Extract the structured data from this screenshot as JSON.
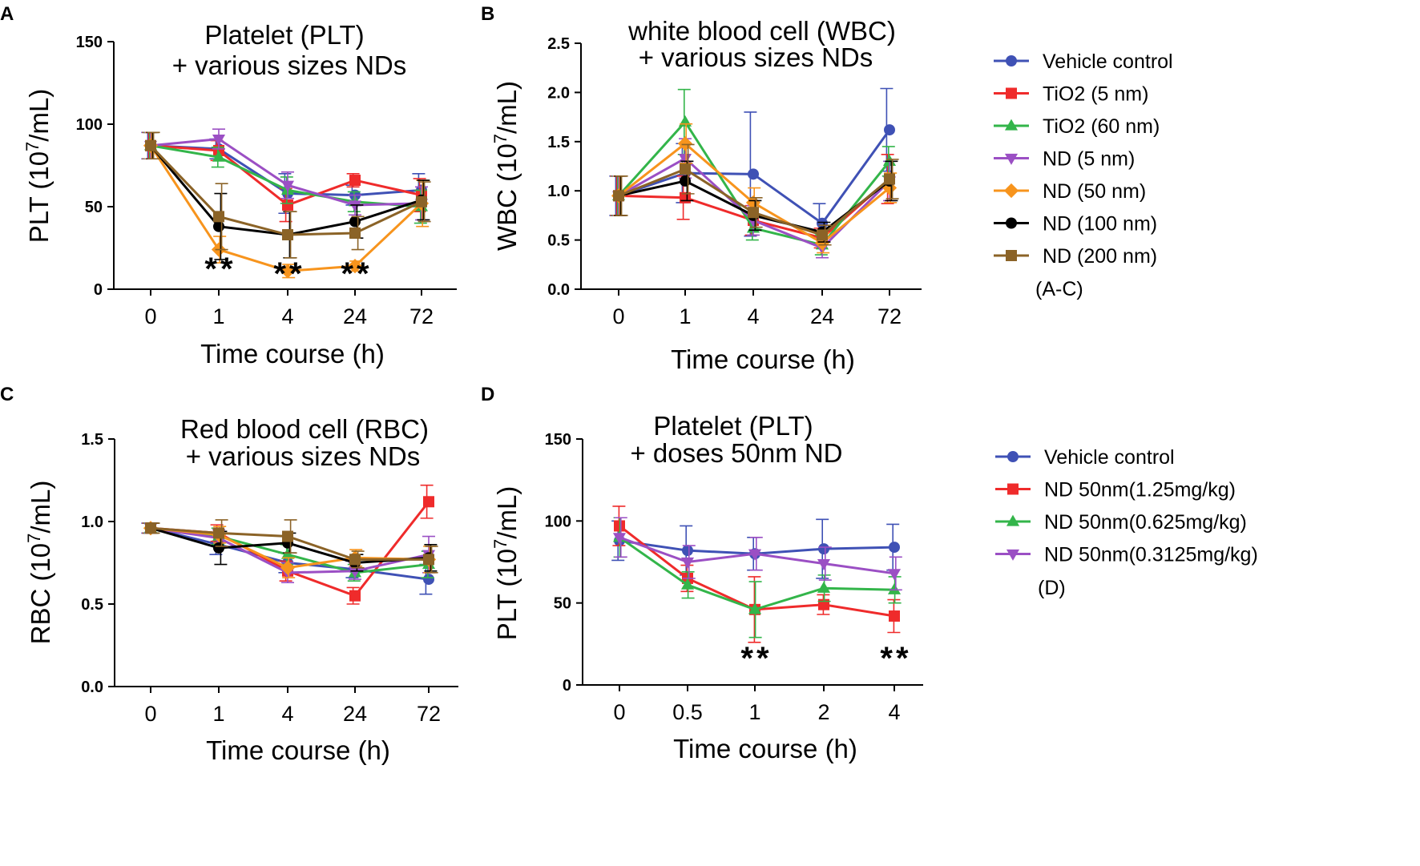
{
  "chart_data": [
    {
      "panel": "A",
      "type": "line",
      "title": [
        "Platelet (PLT)",
        "+ various sizes NDs"
      ],
      "xlabel": "Time course (h)",
      "ylabel": "PLT (10^7/mL)",
      "categories": [
        "0",
        "1",
        "4",
        "24",
        "72"
      ],
      "ylim": [
        0,
        150
      ],
      "yticks": [
        0,
        50,
        100,
        150
      ],
      "series": [
        {
          "name": "Vehicle control",
          "values": [
            87,
            85,
            58,
            57,
            60
          ],
          "errors": [
            8,
            6,
            12,
            6,
            10
          ]
        },
        {
          "name": "TiO2 (5 nm)",
          "values": [
            87,
            84,
            51,
            66,
            57
          ],
          "errors": [
            8,
            6,
            10,
            4,
            10
          ]
        },
        {
          "name": "TiO2 (60 nm)",
          "values": [
            87,
            80,
            60,
            53,
            50
          ],
          "errors": [
            8,
            6,
            8,
            6,
            10
          ]
        },
        {
          "name": "ND (5 nm)",
          "values": [
            87,
            91,
            63,
            51,
            52
          ],
          "errors": [
            8,
            6,
            8,
            6,
            10
          ]
        },
        {
          "name": "ND (50 nm)",
          "values": [
            87,
            24,
            11,
            14,
            52
          ],
          "errors": [
            8,
            8,
            4,
            3,
            14
          ]
        },
        {
          "name": "ND (100 nm)",
          "values": [
            87,
            38,
            33,
            41,
            54
          ],
          "errors": [
            8,
            20,
            14,
            10,
            12
          ]
        },
        {
          "name": "ND (200 nm)",
          "values": [
            87,
            44,
            33,
            34,
            53
          ],
          "errors": [
            8,
            20,
            14,
            10,
            12
          ]
        }
      ],
      "annotations": [
        {
          "category": "1",
          "text": "**"
        },
        {
          "category": "4",
          "text": "**"
        },
        {
          "category": "24",
          "text": "**"
        }
      ]
    },
    {
      "panel": "B",
      "type": "line",
      "title": [
        "white blood cell (WBC)",
        "+ various sizes NDs"
      ],
      "xlabel": "Time course (h)",
      "ylabel": "WBC (10^7/mL)",
      "categories": [
        "0",
        "1",
        "4",
        "24",
        "72"
      ],
      "ylim": [
        0,
        2.5
      ],
      "yticks": [
        "0.0",
        "0.5",
        "1.0",
        "1.5",
        "2.0",
        "2.5"
      ],
      "series": [
        {
          "name": "Vehicle control",
          "values": [
            0.95,
            1.18,
            1.17,
            0.67,
            1.62
          ],
          "errors": [
            0.2,
            0.3,
            0.63,
            0.2,
            0.42
          ]
        },
        {
          "name": "TiO2 (5 nm)",
          "values": [
            0.95,
            0.93,
            0.7,
            0.52,
            1.12
          ],
          "errors": [
            0.2,
            0.22,
            0.15,
            0.1,
            0.25
          ]
        },
        {
          "name": "TiO2 (60 nm)",
          "values": [
            0.95,
            1.7,
            0.62,
            0.45,
            1.3
          ],
          "errors": [
            0.2,
            0.33,
            0.12,
            0.1,
            0.15
          ]
        },
        {
          "name": "ND (5 nm)",
          "values": [
            0.95,
            1.33,
            0.7,
            0.42,
            1.1
          ],
          "errors": [
            0.2,
            0.2,
            0.15,
            0.1,
            0.2
          ]
        },
        {
          "name": "ND (50 nm)",
          "values": [
            0.95,
            1.48,
            0.88,
            0.47,
            1.03
          ],
          "errors": [
            0.2,
            0.2,
            0.15,
            0.1,
            0.15
          ]
        },
        {
          "name": "ND (100 nm)",
          "values": [
            0.95,
            1.1,
            0.75,
            0.58,
            1.1
          ],
          "errors": [
            0.2,
            0.2,
            0.15,
            0.1,
            0.2
          ]
        },
        {
          "name": "ND (200 nm)",
          "values": [
            0.95,
            1.22,
            0.78,
            0.55,
            1.12
          ],
          "errors": [
            0.2,
            0.25,
            0.15,
            0.1,
            0.2
          ]
        }
      ]
    },
    {
      "panel": "C",
      "type": "line",
      "title": [
        "Red blood cell (RBC)",
        "+ various sizes NDs"
      ],
      "xlabel": "Time course (h)",
      "ylabel": "RBC (10^7/mL)",
      "categories": [
        "0",
        "1",
        "4",
        "24",
        "72"
      ],
      "ylim": [
        0,
        1.5
      ],
      "yticks": [
        "0.0",
        "0.5",
        "1.0",
        "1.5"
      ],
      "series": [
        {
          "name": "Vehicle control",
          "values": [
            0.96,
            0.86,
            0.75,
            0.71,
            0.65
          ],
          "errors": [
            0.03,
            0.06,
            0.06,
            0.05,
            0.09
          ]
        },
        {
          "name": "TiO2 (5 nm)",
          "values": [
            0.96,
            0.93,
            0.7,
            0.55,
            1.12
          ],
          "errors": [
            0.03,
            0.05,
            0.06,
            0.05,
            0.1
          ]
        },
        {
          "name": "TiO2 (60 nm)",
          "values": [
            0.96,
            0.91,
            0.8,
            0.69,
            0.74
          ],
          "errors": [
            0.03,
            0.05,
            0.06,
            0.05,
            0.08
          ]
        },
        {
          "name": "ND (5 nm)",
          "values": [
            0.96,
            0.9,
            0.69,
            0.7,
            0.8
          ],
          "errors": [
            0.03,
            0.05,
            0.06,
            0.05,
            0.11
          ]
        },
        {
          "name": "ND (50 nm)",
          "values": [
            0.96,
            0.92,
            0.72,
            0.78,
            0.77
          ],
          "errors": [
            0.03,
            0.05,
            0.06,
            0.05,
            0.08
          ]
        },
        {
          "name": "ND (100 nm)",
          "values": [
            0.96,
            0.84,
            0.87,
            0.75,
            0.78
          ],
          "errors": [
            0.03,
            0.1,
            0.06,
            0.05,
            0.08
          ]
        },
        {
          "name": "ND (200 nm)",
          "values": [
            0.96,
            0.93,
            0.91,
            0.77,
            0.77
          ],
          "errors": [
            0.03,
            0.08,
            0.1,
            0.05,
            0.08
          ]
        }
      ]
    },
    {
      "panel": "D",
      "type": "line",
      "title": [
        "Platelet (PLT)",
        "+ doses 50nm ND"
      ],
      "xlabel": "Time course (h)",
      "ylabel": "PLT (10^7/mL)",
      "categories": [
        "0",
        "0.5",
        "1",
        "2",
        "4"
      ],
      "ylim": [
        0,
        150
      ],
      "yticks": [
        0,
        50,
        100,
        150
      ],
      "series": [
        {
          "name": "Vehicle control",
          "values": [
            88,
            82,
            80,
            83,
            84
          ],
          "errors": [
            12,
            15,
            10,
            18,
            14
          ]
        },
        {
          "name": "ND 50nm(1.25mg/kg)",
          "values": [
            97,
            65,
            46,
            49,
            42
          ],
          "errors": [
            12,
            8,
            20,
            6,
            10
          ]
        },
        {
          "name": "ND 50nm(0.625mg/kg)",
          "values": [
            90,
            61,
            46,
            59,
            58
          ],
          "errors": [
            12,
            8,
            17,
            8,
            8
          ]
        },
        {
          "name": "ND 50nm(0.3125mg/kg)",
          "values": [
            90,
            75,
            80,
            74,
            68
          ],
          "errors": [
            12,
            10,
            10,
            10,
            10
          ]
        }
      ],
      "annotations": [
        {
          "category": "1",
          "text": "**"
        },
        {
          "category": "4",
          "text": "**"
        }
      ]
    }
  ],
  "legends": {
    "abc": {
      "entries": [
        "Vehicle control",
        "TiO2 (5 nm)",
        "TiO2 (60 nm)",
        "ND (5 nm)",
        "ND (50 nm)",
        "ND (100 nm)",
        "ND (200 nm)"
      ],
      "note": "(A-C)"
    },
    "d": {
      "entries": [
        "Vehicle control",
        "ND 50nm(1.25mg/kg)",
        "ND 50nm(0.625mg/kg)",
        "ND 50nm(0.3125mg/kg)"
      ],
      "note": "(D)"
    }
  },
  "series_styles": {
    "Vehicle control": {
      "color": "#3f51b5",
      "marker": "circle"
    },
    "TiO2 (5 nm)": {
      "color": "#ef2b2b",
      "marker": "square"
    },
    "TiO2 (60 nm)": {
      "color": "#33b54a",
      "marker": "triangle-up"
    },
    "ND (5 nm)": {
      "color": "#9b4fc4",
      "marker": "triangle-down"
    },
    "ND (50 nm)": {
      "color": "#f7941d",
      "marker": "diamond"
    },
    "ND (100 nm)": {
      "color": "#000000",
      "marker": "circle"
    },
    "ND (200 nm)": {
      "color": "#8b6327",
      "marker": "square"
    },
    "ND 50nm(1.25mg/kg)": {
      "color": "#ef2b2b",
      "marker": "square"
    },
    "ND 50nm(0.625mg/kg)": {
      "color": "#33b54a",
      "marker": "triangle-up"
    },
    "ND 50nm(0.3125mg/kg)": {
      "color": "#9b4fc4",
      "marker": "triangle-down"
    }
  }
}
